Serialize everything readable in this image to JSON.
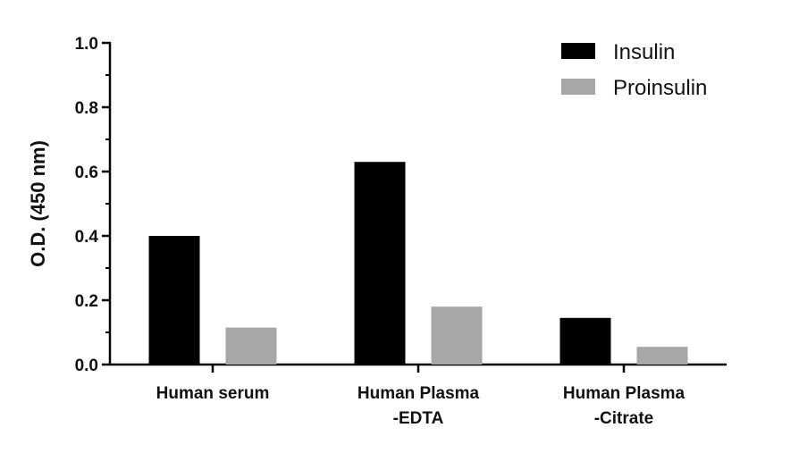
{
  "chart_data": {
    "type": "bar",
    "categories": [
      [
        "Human serum"
      ],
      [
        "Human Plasma",
        "-EDTA"
      ],
      [
        "Human Plasma",
        "-Citrate"
      ]
    ],
    "series": [
      {
        "name": "Insulin",
        "color": "#000000",
        "values": [
          0.4,
          0.63,
          0.145
        ]
      },
      {
        "name": "Proinsulin",
        "color": "#a7a7a9",
        "values": [
          0.115,
          0.18,
          0.055
        ]
      }
    ],
    "xlabel": "",
    "ylabel": "O.D. (450 nm)",
    "ylim": [
      0,
      1.0
    ],
    "yticks": [
      0.0,
      0.2,
      0.4,
      0.6,
      0.8,
      1.0
    ],
    "ytick_labels": [
      "0.0",
      "0.2",
      "0.4",
      "0.6",
      "0.8",
      "1.0"
    ],
    "grid": false,
    "legend_position": "top-right"
  }
}
